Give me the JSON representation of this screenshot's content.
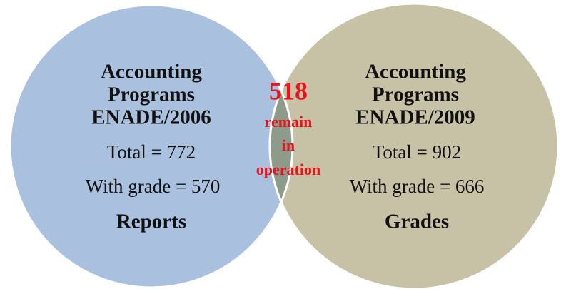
{
  "sets": [
    {
      "title": [
        "Accounting",
        "Programs",
        "ENADE/2006"
      ],
      "total": "Total = 772",
      "with_grade": "With grade = 570",
      "tag": "Reports"
    },
    {
      "title": [
        "Accounting",
        "Programs",
        "ENADE/2009"
      ],
      "total": "Total = 902",
      "with_grade": "With grade = 666",
      "tag": "Grades"
    }
  ],
  "intersection": {
    "count": "518",
    "text": [
      "remain",
      "in",
      "operation"
    ]
  }
}
